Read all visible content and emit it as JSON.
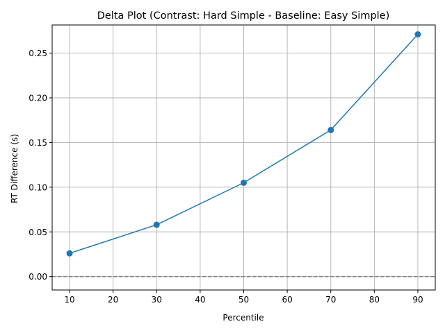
{
  "chart_data": {
    "type": "line",
    "title": "Delta Plot (Contrast: Hard Simple - Baseline: Easy Simple)",
    "xlabel": "Percentile",
    "ylabel": "RT Difference (s)",
    "xlim": [
      6,
      94
    ],
    "ylim": [
      -0.015,
      0.2815
    ],
    "xticks": [
      10,
      20,
      30,
      40,
      50,
      60,
      70,
      80,
      90
    ],
    "yticks": [
      0.0,
      0.05,
      0.1,
      0.15,
      0.2,
      0.25
    ],
    "ytick_labels": [
      "0.00",
      "0.05",
      "0.10",
      "0.15",
      "0.20",
      "0.25"
    ],
    "grid": true,
    "reference_line": {
      "y": 0,
      "style": "dashed",
      "color": "#808080"
    },
    "series": [
      {
        "color": "#1f77b4",
        "marker": "circle",
        "x": [
          10,
          30,
          50,
          70,
          90
        ],
        "y": [
          0.026,
          0.058,
          0.105,
          0.164,
          0.271
        ]
      }
    ]
  }
}
